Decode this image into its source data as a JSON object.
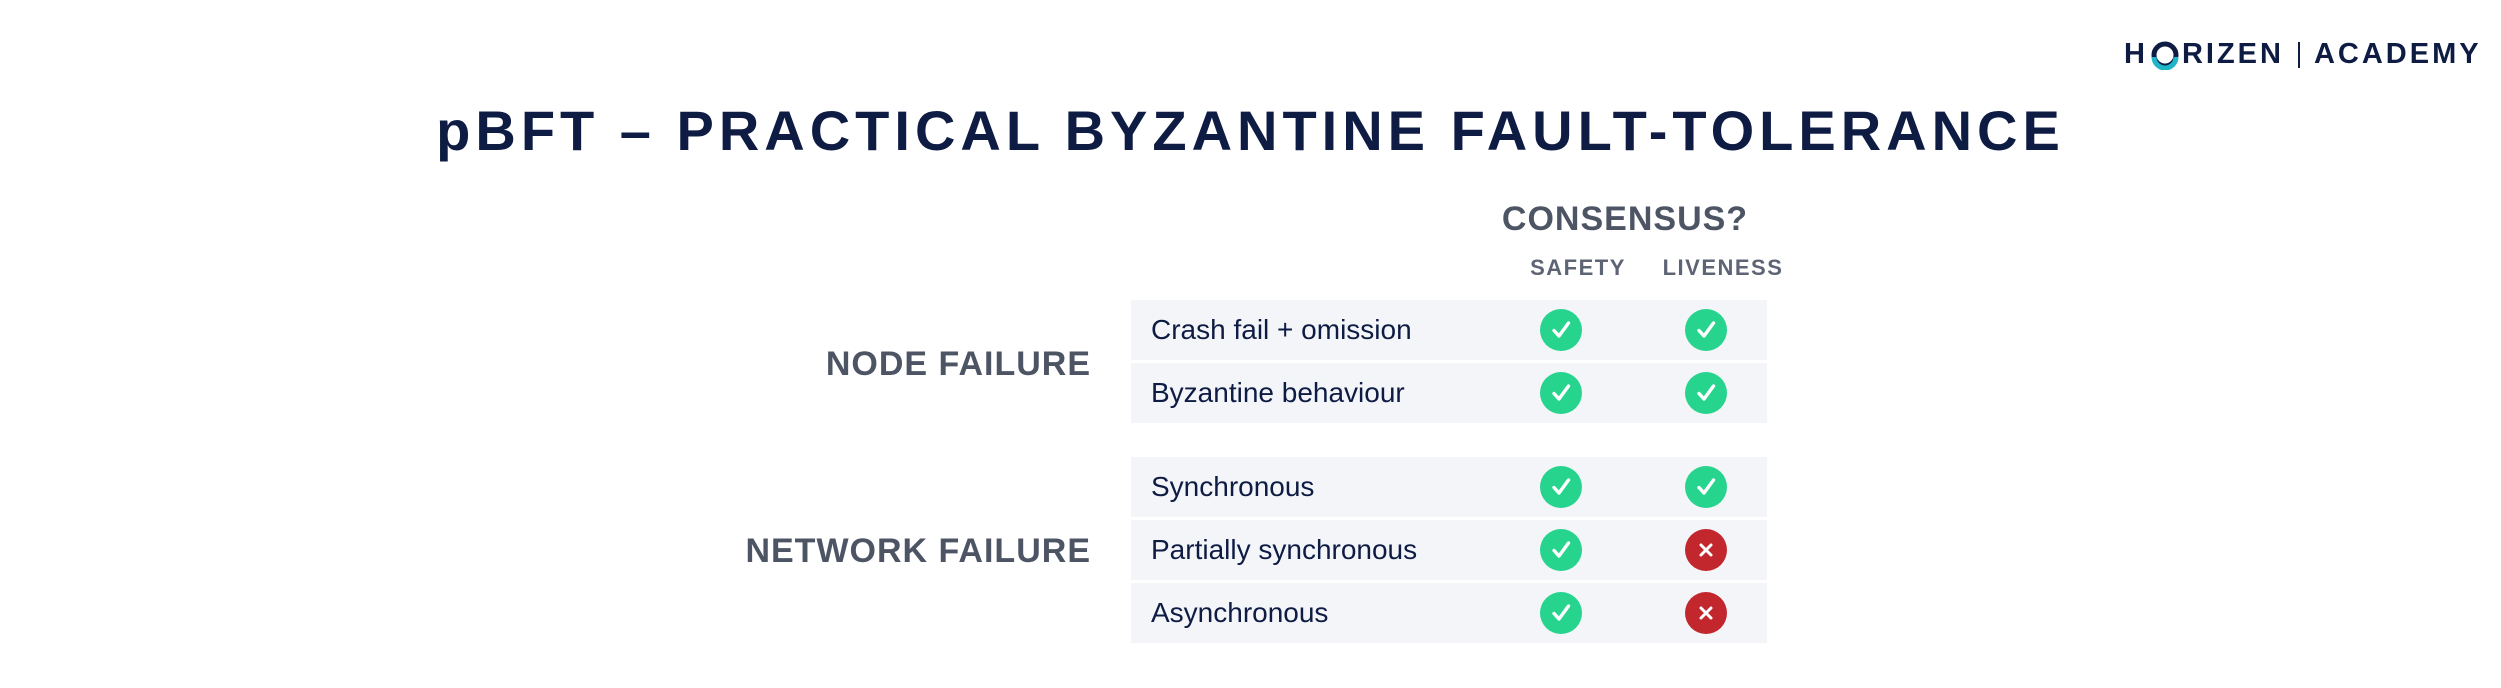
{
  "logo": {
    "brand_left": "H",
    "brand_right": "RIZEN",
    "academy": "ACADEMY"
  },
  "title": "pBFT – PRACTICAL BYZANTINE FAULT-TOLERANCE",
  "table": {
    "heading": "CONSENSUS?",
    "columns": [
      "SAFETY",
      "LIVENESS"
    ],
    "groups": [
      {
        "label": "NODE FAILURE",
        "rows": [
          {
            "label": "Crash fail + omission",
            "safety": true,
            "liveness": true
          },
          {
            "label": "Byzantine behaviour",
            "safety": true,
            "liveness": true
          }
        ]
      },
      {
        "label": "NETWORK FAILURE",
        "rows": [
          {
            "label": "Synchronous",
            "safety": true,
            "liveness": true
          },
          {
            "label": "Partially synchronous",
            "safety": true,
            "liveness": false
          },
          {
            "label": "Asynchronous",
            "safety": true,
            "liveness": false
          }
        ]
      }
    ]
  },
  "colors": {
    "yes": "#26d48e",
    "no": "#c1272d",
    "title": "#0e1c44",
    "logo_accent": "#1fb6c8"
  },
  "icons": {
    "yes": "check-icon",
    "no": "cross-icon"
  }
}
